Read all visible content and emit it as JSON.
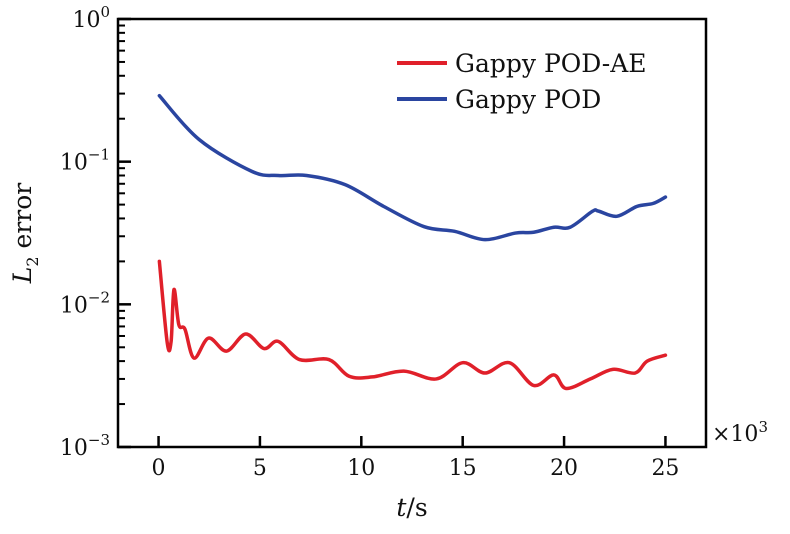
{
  "chart_data": {
    "type": "line",
    "title": "",
    "xlabel": {
      "var": "t",
      "unit": "/s"
    },
    "ylabel": {
      "var": "L",
      "sub": "2",
      "rest": " error"
    },
    "x_multiplier": {
      "prefix": "×10",
      "exp": "3"
    },
    "xlim": [
      -2,
      27
    ],
    "ylim": [
      0.001,
      1
    ],
    "yscale": "log",
    "x_ticks": [
      0,
      5,
      10,
      15,
      20,
      25
    ],
    "x_tick_labels": [
      "0",
      "5",
      "10",
      "15",
      "20",
      "25"
    ],
    "y_ticks": [
      {
        "value": 1,
        "base": "10",
        "exp": "0"
      },
      {
        "value": 0.1,
        "base": "10",
        "exp": "−1"
      },
      {
        "value": 0.01,
        "base": "10",
        "exp": "−2"
      },
      {
        "value": 0.001,
        "base": "10",
        "exp": "−3"
      }
    ],
    "grid": false,
    "legend_position": "top-right",
    "series": [
      {
        "name": "Gappy POD-AE",
        "color": "#e0202a",
        "x": [
          0.04,
          0.43,
          0.62,
          0.76,
          1.0,
          1.3,
          1.75,
          2.47,
          3.35,
          4.3,
          5.2,
          5.9,
          6.95,
          8.4,
          9.4,
          10.55,
          12.1,
          13.7,
          15.0,
          16.1,
          17.3,
          18.5,
          19.5,
          20.1,
          21.3,
          22.4,
          23.5,
          24.1,
          25.0
        ],
        "y": [
          0.02,
          0.00536,
          0.0055,
          0.0127,
          0.0072,
          0.0067,
          0.0042,
          0.0058,
          0.0047,
          0.0062,
          0.0049,
          0.0055,
          0.0041,
          0.0041,
          0.00313,
          0.0031,
          0.0034,
          0.003,
          0.0039,
          0.0033,
          0.0039,
          0.0027,
          0.0032,
          0.00257,
          0.003,
          0.0035,
          0.0033,
          0.004,
          0.0044
        ]
      },
      {
        "name": "Gappy POD",
        "color": "#2a45a0",
        "x": [
          0.04,
          2.0,
          4.6,
          5.9,
          7.3,
          9.2,
          11.1,
          13.1,
          14.6,
          16.1,
          17.6,
          18.5,
          19.5,
          20.3,
          21.4,
          21.7,
          22.6,
          23.6,
          24.4,
          25.0
        ],
        "y": [
          0.29,
          0.143,
          0.0855,
          0.08,
          0.08,
          0.069,
          0.0486,
          0.035,
          0.0325,
          0.0284,
          0.0316,
          0.032,
          0.0347,
          0.0347,
          0.0449,
          0.045,
          0.0414,
          0.0486,
          0.051,
          0.0565
        ]
      }
    ]
  }
}
